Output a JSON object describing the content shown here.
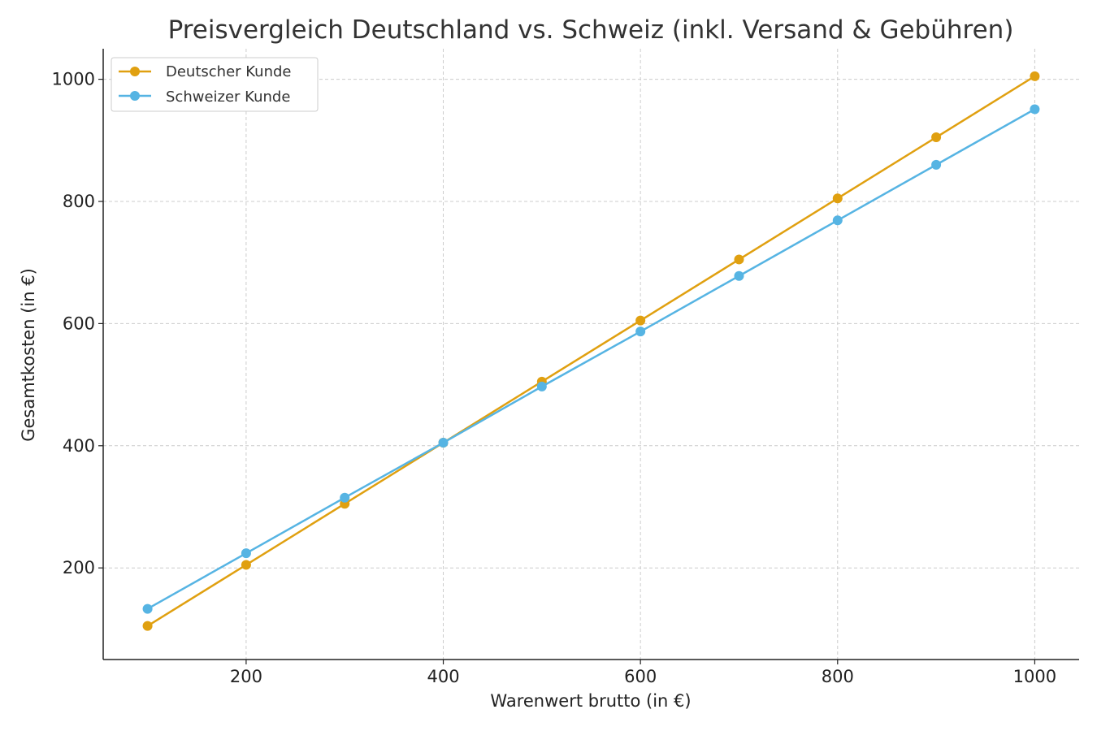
{
  "chart_data": {
    "type": "line",
    "title": "Preisvergleich Deutschland vs. Schweiz (inkl. Versand & Gebühren)",
    "xlabel": "Warenwert brutto (in €)",
    "ylabel": "Gesamtkosten (in €)",
    "x": [
      100,
      200,
      300,
      400,
      500,
      600,
      700,
      800,
      900,
      1000
    ],
    "xlim": [
      55,
      1045
    ],
    "ylim": [
      50,
      1050
    ],
    "xticks": [
      200,
      400,
      600,
      800,
      1000
    ],
    "yticks": [
      200,
      400,
      600,
      800,
      1000
    ],
    "grid": true,
    "legend_position": "top-left",
    "series": [
      {
        "name": "Deutscher Kunde",
        "color": "#E0A010",
        "values": [
          105,
          205,
          305,
          405,
          505,
          605,
          705,
          805,
          905,
          1005
        ]
      },
      {
        "name": "Schweizer Kunde",
        "color": "#56B4E3",
        "values": [
          133,
          224,
          315,
          405,
          497,
          587,
          678,
          769,
          860,
          951
        ]
      }
    ]
  }
}
